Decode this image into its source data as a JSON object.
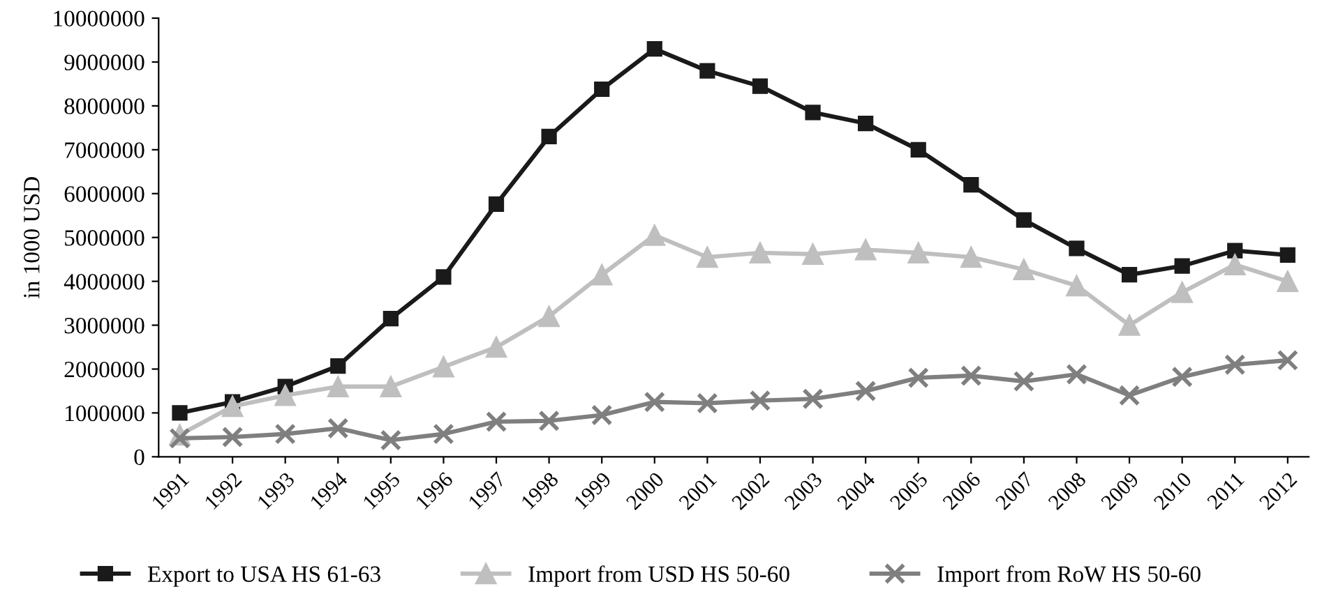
{
  "chart_data": {
    "type": "line",
    "ylabel": "in 1000 USD",
    "categories": [
      "1991",
      "1992",
      "1993",
      "1994",
      "1995",
      "1996",
      "1997",
      "1998",
      "1999",
      "2000",
      "2001",
      "2002",
      "2003",
      "2004",
      "2005",
      "2006",
      "2007",
      "2008",
      "2009",
      "2010",
      "2011",
      "2012"
    ],
    "series": [
      {
        "name": "Export to USA HS 61-63",
        "color": "#1a1a1a",
        "marker": "square",
        "values": [
          1000000,
          1250000,
          1600000,
          2070000,
          3150000,
          4100000,
          5760000,
          7300000,
          8380000,
          9300000,
          8800000,
          8450000,
          7850000,
          7600000,
          7000000,
          6200000,
          5400000,
          4750000,
          4150000,
          4350000,
          4700000,
          4600000
        ]
      },
      {
        "name": "Import from USD HS 50-60",
        "color": "#bfbfbf",
        "marker": "triangle",
        "values": [
          500000,
          1150000,
          1400000,
          1600000,
          1600000,
          2050000,
          2500000,
          3200000,
          4150000,
          5050000,
          4550000,
          4650000,
          4620000,
          4720000,
          4650000,
          4550000,
          4270000,
          3900000,
          3000000,
          3750000,
          4380000,
          4000000
        ]
      },
      {
        "name": "Import from RoW HS 50-60",
        "color": "#7f7f7f",
        "marker": "cross",
        "values": [
          420000,
          450000,
          520000,
          650000,
          380000,
          520000,
          800000,
          820000,
          950000,
          1250000,
          1220000,
          1280000,
          1320000,
          1500000,
          1800000,
          1850000,
          1720000,
          1880000,
          1400000,
          1820000,
          2100000,
          2200000
        ]
      }
    ],
    "ylim": [
      0,
      10000000
    ],
    "yticks": [
      0,
      1000000,
      2000000,
      3000000,
      4000000,
      5000000,
      6000000,
      7000000,
      8000000,
      9000000,
      10000000
    ],
    "grid": false,
    "legend": "bottom",
    "line_style": "solid"
  }
}
